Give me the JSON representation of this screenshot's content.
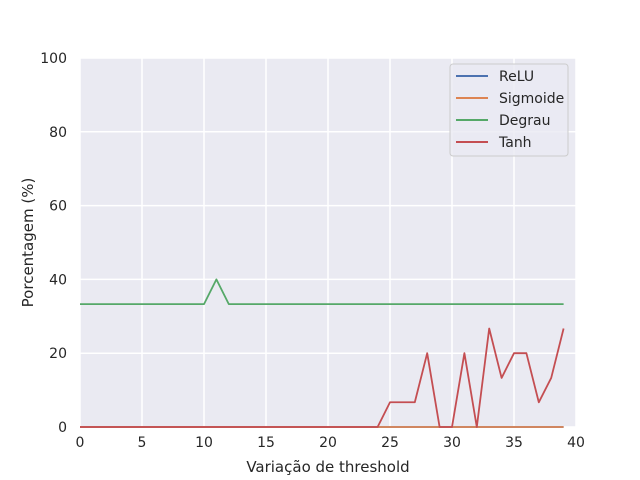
{
  "chart_data": {
    "type": "line",
    "title": "",
    "xlabel": "Variação de threshold",
    "ylabel": "Porcentagem (%)",
    "xlim": [
      0,
      40
    ],
    "ylim": [
      0,
      100
    ],
    "xticks": [
      0,
      5,
      10,
      15,
      20,
      25,
      30,
      35,
      40
    ],
    "yticks": [
      0,
      20,
      40,
      60,
      80,
      100
    ],
    "grid": true,
    "legend_position": "top-right",
    "series": [
      {
        "name": "ReLU",
        "color": "#4c72b0",
        "x": [
          0,
          1,
          2,
          3,
          4,
          5,
          6,
          7,
          8,
          9,
          10,
          11,
          12,
          13,
          14,
          15,
          16,
          17,
          18,
          19,
          20,
          21,
          22,
          23,
          24,
          25,
          26,
          27,
          28,
          29,
          30,
          31,
          32,
          33,
          34,
          35,
          36,
          37,
          38,
          39
        ],
        "values": [
          0,
          0,
          0,
          0,
          0,
          0,
          0,
          0,
          0,
          0,
          0,
          0,
          0,
          0,
          0,
          0,
          0,
          0,
          0,
          0,
          0,
          0,
          0,
          0,
          0,
          0,
          0,
          0,
          0,
          0,
          0,
          0,
          0,
          0,
          0,
          0,
          0,
          0,
          0,
          0
        ]
      },
      {
        "name": "Sigmoide",
        "color": "#dd8452",
        "x": [
          0,
          1,
          2,
          3,
          4,
          5,
          6,
          7,
          8,
          9,
          10,
          11,
          12,
          13,
          14,
          15,
          16,
          17,
          18,
          19,
          20,
          21,
          22,
          23,
          24,
          25,
          26,
          27,
          28,
          29,
          30,
          31,
          32,
          33,
          34,
          35,
          36,
          37,
          38,
          39
        ],
        "values": [
          0,
          0,
          0,
          0,
          0,
          0,
          0,
          0,
          0,
          0,
          0,
          0,
          0,
          0,
          0,
          0,
          0,
          0,
          0,
          0,
          0,
          0,
          0,
          0,
          0,
          0,
          0,
          0,
          0,
          0,
          0,
          0,
          0,
          0,
          0,
          0,
          0,
          0,
          0,
          0
        ]
      },
      {
        "name": "Degrau",
        "color": "#55a868",
        "x": [
          0,
          1,
          2,
          3,
          4,
          5,
          6,
          7,
          8,
          9,
          10,
          11,
          12,
          13,
          14,
          15,
          16,
          17,
          18,
          19,
          20,
          21,
          22,
          23,
          24,
          25,
          26,
          27,
          28,
          29,
          30,
          31,
          32,
          33,
          34,
          35,
          36,
          37,
          38,
          39
        ],
        "values": [
          33.3,
          33.3,
          33.3,
          33.3,
          33.3,
          33.3,
          33.3,
          33.3,
          33.3,
          33.3,
          33.3,
          40,
          33.3,
          33.3,
          33.3,
          33.3,
          33.3,
          33.3,
          33.3,
          33.3,
          33.3,
          33.3,
          33.3,
          33.3,
          33.3,
          33.3,
          33.3,
          33.3,
          33.3,
          33.3,
          33.3,
          33.3,
          33.3,
          33.3,
          33.3,
          33.3,
          33.3,
          33.3,
          33.3,
          33.3
        ]
      },
      {
        "name": "Tanh",
        "color": "#c44e52",
        "x": [
          0,
          1,
          2,
          3,
          4,
          5,
          6,
          7,
          8,
          9,
          10,
          11,
          12,
          13,
          14,
          15,
          16,
          17,
          18,
          19,
          20,
          21,
          22,
          23,
          24,
          25,
          26,
          27,
          28,
          29,
          30,
          31,
          32,
          33,
          34,
          35,
          36,
          37,
          38,
          39
        ],
        "values": [
          0,
          0,
          0,
          0,
          0,
          0,
          0,
          0,
          0,
          0,
          0,
          0,
          0,
          0,
          0,
          0,
          0,
          0,
          0,
          0,
          0,
          0,
          0,
          0,
          0,
          6.7,
          6.7,
          6.7,
          20,
          0,
          0,
          20,
          0,
          26.7,
          13.3,
          20,
          20,
          6.7,
          13.3,
          26.7
        ]
      }
    ]
  },
  "colors": {
    "plot_background": "#eaeaf2",
    "grid": "#ffffff",
    "text": "#262626"
  }
}
